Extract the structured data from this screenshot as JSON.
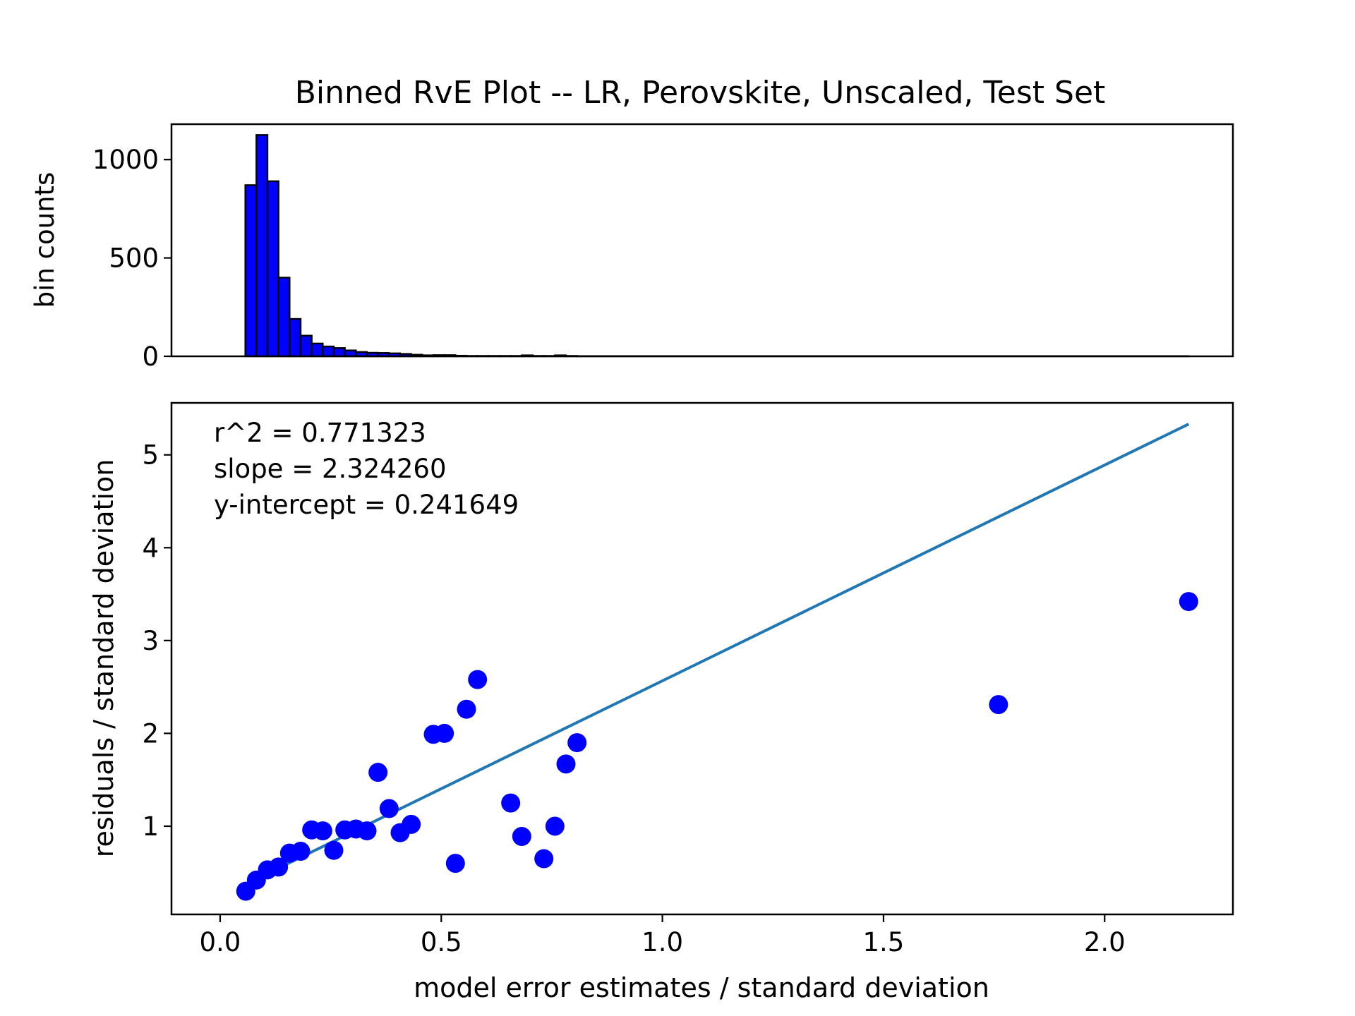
{
  "chart_data": [
    {
      "type": "bar",
      "title": "Binned RvE Plot -- LR, Perovskite, Unscaled, Test Set",
      "ylabel": "bin counts",
      "xlim": [
        -0.11,
        2.29
      ],
      "ylim": [
        0,
        1180
      ],
      "yticks": [
        0,
        500,
        1000
      ],
      "bins": [
        {
          "x0": 0.057,
          "x1": 0.082,
          "count": 870
        },
        {
          "x0": 0.082,
          "x1": 0.107,
          "count": 1125
        },
        {
          "x0": 0.107,
          "x1": 0.132,
          "count": 890
        },
        {
          "x0": 0.132,
          "x1": 0.157,
          "count": 400
        },
        {
          "x0": 0.157,
          "x1": 0.182,
          "count": 190
        },
        {
          "x0": 0.182,
          "x1": 0.207,
          "count": 105
        },
        {
          "x0": 0.207,
          "x1": 0.232,
          "count": 65
        },
        {
          "x0": 0.232,
          "x1": 0.257,
          "count": 50
        },
        {
          "x0": 0.257,
          "x1": 0.282,
          "count": 42
        },
        {
          "x0": 0.282,
          "x1": 0.307,
          "count": 30
        },
        {
          "x0": 0.307,
          "x1": 0.332,
          "count": 22
        },
        {
          "x0": 0.332,
          "x1": 0.357,
          "count": 18
        },
        {
          "x0": 0.357,
          "x1": 0.382,
          "count": 17
        },
        {
          "x0": 0.382,
          "x1": 0.407,
          "count": 15
        },
        {
          "x0": 0.407,
          "x1": 0.432,
          "count": 12
        },
        {
          "x0": 0.432,
          "x1": 0.457,
          "count": 8
        },
        {
          "x0": 0.457,
          "x1": 0.482,
          "count": 5
        },
        {
          "x0": 0.482,
          "x1": 0.507,
          "count": 6
        },
        {
          "x0": 0.507,
          "x1": 0.532,
          "count": 6
        },
        {
          "x0": 0.532,
          "x1": 0.557,
          "count": 3
        },
        {
          "x0": 0.557,
          "x1": 0.582,
          "count": 2
        },
        {
          "x0": 0.582,
          "x1": 0.607,
          "count": 2
        },
        {
          "x0": 0.607,
          "x1": 0.632,
          "count": 2
        },
        {
          "x0": 0.632,
          "x1": 0.657,
          "count": 2
        },
        {
          "x0": 0.657,
          "x1": 0.682,
          "count": 2
        },
        {
          "x0": 0.682,
          "x1": 0.707,
          "count": 5
        },
        {
          "x0": 0.707,
          "x1": 0.732,
          "count": 2
        },
        {
          "x0": 0.732,
          "x1": 0.757,
          "count": 2
        },
        {
          "x0": 0.757,
          "x1": 0.782,
          "count": 5
        },
        {
          "x0": 0.782,
          "x1": 0.807,
          "count": 2
        },
        {
          "x0": 0.807,
          "x1": 2.19,
          "count": 1
        }
      ]
    },
    {
      "type": "scatter",
      "xlabel": "model error estimates / standard deviation",
      "ylabel": "residuals / standard deviation",
      "xlim": [
        -0.11,
        2.29
      ],
      "ylim": [
        0.05,
        5.56
      ],
      "xticks": [
        0.0,
        0.5,
        1.0,
        1.5,
        2.0
      ],
      "xtick_labels": [
        "0.0",
        "0.5",
        "1.0",
        "1.5",
        "2.0"
      ],
      "yticks": [
        1,
        2,
        3,
        4,
        5
      ],
      "point_color": "#0000ff",
      "line_color": "#1f77b4",
      "points": [
        {
          "x": 0.058,
          "y": 0.3
        },
        {
          "x": 0.082,
          "y": 0.42
        },
        {
          "x": 0.107,
          "y": 0.53
        },
        {
          "x": 0.132,
          "y": 0.56
        },
        {
          "x": 0.157,
          "y": 0.71
        },
        {
          "x": 0.182,
          "y": 0.73
        },
        {
          "x": 0.207,
          "y": 0.96
        },
        {
          "x": 0.232,
          "y": 0.95
        },
        {
          "x": 0.257,
          "y": 0.74
        },
        {
          "x": 0.282,
          "y": 0.96
        },
        {
          "x": 0.307,
          "y": 0.97
        },
        {
          "x": 0.332,
          "y": 0.95
        },
        {
          "x": 0.357,
          "y": 1.58
        },
        {
          "x": 0.382,
          "y": 1.19
        },
        {
          "x": 0.407,
          "y": 0.93
        },
        {
          "x": 0.432,
          "y": 1.02
        },
        {
          "x": 0.482,
          "y": 1.99
        },
        {
          "x": 0.507,
          "y": 2.0
        },
        {
          "x": 0.532,
          "y": 0.6
        },
        {
          "x": 0.557,
          "y": 2.26
        },
        {
          "x": 0.582,
          "y": 2.58
        },
        {
          "x": 0.657,
          "y": 1.25
        },
        {
          "x": 0.682,
          "y": 0.89
        },
        {
          "x": 0.732,
          "y": 0.65
        },
        {
          "x": 0.757,
          "y": 1.0
        },
        {
          "x": 0.782,
          "y": 1.67
        },
        {
          "x": 0.807,
          "y": 1.9
        },
        {
          "x": 1.76,
          "y": 2.31
        },
        {
          "x": 2.19,
          "y": 3.42
        }
      ],
      "fit_line": {
        "x_start": 0.058,
        "x_end": 2.19,
        "slope": 2.32426,
        "intercept": 0.241649
      },
      "annotations": [
        "r^2 = 0.771323",
        "slope = 2.324260",
        "y-intercept = 0.241649"
      ]
    }
  ]
}
